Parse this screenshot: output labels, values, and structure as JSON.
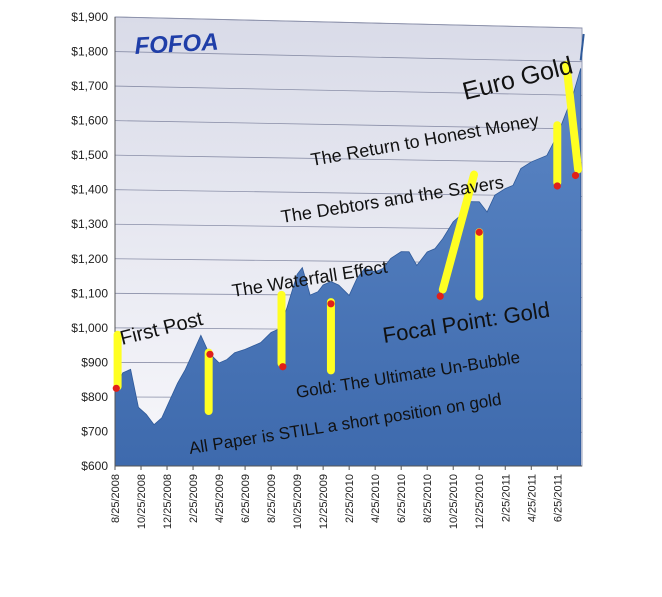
{
  "logo": "FOFOA",
  "chart_data": {
    "type": "area",
    "title": "",
    "xlabel": "",
    "ylabel": "",
    "ylim": [
      600,
      1900
    ],
    "y_ticks": [
      600,
      700,
      800,
      900,
      1000,
      1100,
      1200,
      1300,
      1400,
      1500,
      1600,
      1700,
      1800,
      1900
    ],
    "y_tick_labels": [
      "$600",
      "$700",
      "$800",
      "$900",
      "$1,000",
      "$1,100",
      "$1,200",
      "$1,300",
      "$1,400",
      "$1,500",
      "$1,600",
      "$1,700",
      "$1,800",
      "$1,900"
    ],
    "x_tick_labels": [
      "8/25/2008",
      "10/25/2008",
      "12/25/2008",
      "2/25/2009",
      "4/25/2009",
      "6/25/2009",
      "8/25/2009",
      "10/25/2009",
      "12/25/2009",
      "2/25/2010",
      "4/25/2010",
      "6/25/2010",
      "8/25/2010",
      "10/25/2010",
      "12/25/2010",
      "2/25/2011",
      "4/25/2011",
      "6/25/2011"
    ],
    "series": [
      {
        "x": [
          0,
          0.3,
          0.6,
          0.9,
          1.2,
          1.5,
          1.8,
          2.1,
          2.4,
          2.7,
          3.0,
          3.3,
          3.6,
          4.0,
          4.3,
          4.6,
          5.0,
          5.3,
          5.6,
          6.0,
          6.3,
          6.6,
          7.0,
          7.2,
          7.5,
          7.8,
          8.0,
          8.3,
          8.6,
          9.0,
          9.3,
          9.6,
          10.0,
          10.3,
          10.6,
          11.0,
          11.3,
          11.6,
          12.0,
          12.3,
          12.6,
          13.0,
          13.3,
          13.6,
          14.0,
          14.3,
          14.6,
          15.0,
          15.3,
          15.6,
          16.0,
          16.3,
          16.6,
          17.0,
          17.3,
          17.6,
          17.9
        ],
        "values": [
          825,
          870,
          880,
          770,
          750,
          720,
          740,
          790,
          840,
          880,
          930,
          980,
          930,
          900,
          910,
          930,
          940,
          950,
          960,
          990,
          1000,
          1060,
          1160,
          1180,
          1100,
          1110,
          1130,
          1140,
          1130,
          1100,
          1150,
          1180,
          1170,
          1180,
          1210,
          1230,
          1230,
          1190,
          1230,
          1240,
          1270,
          1320,
          1340,
          1380,
          1380,
          1350,
          1400,
          1420,
          1430,
          1480,
          1500,
          1510,
          1520,
          1580,
          1640,
          1700,
          1780
        ]
      }
    ],
    "annotations": [
      {
        "text": "First Post",
        "x": 0,
        "y": 825
      },
      {
        "text": "The Waterfall Effect",
        "x": 6.4,
        "y": 895
      },
      {
        "text": "The Debtors and the Savers",
        "x": 12.5,
        "y": 1120
      },
      {
        "text": "The Return to Honest Money",
        "x": 17.0,
        "y": 1455
      },
      {
        "text": "Euro Gold",
        "x": 17.7,
        "y": 1475
      },
      {
        "text": "Focal Point: Gold",
        "x": 14.0,
        "y": 1300
      },
      {
        "text": "Gold: The Ultimate Un-Bubble",
        "x": 8.3,
        "y": 1075
      },
      {
        "text": "All Paper is STILL a short position on gold",
        "x": 3.6,
        "y": 925
      }
    ]
  }
}
